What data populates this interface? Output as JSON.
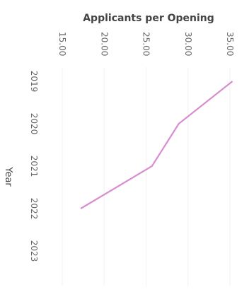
{
  "chart_data": {
    "type": "line",
    "orientation": "vertical-categories",
    "title": "Applicants per Opening",
    "y_axis_label": "Year",
    "categories": [
      "2019",
      "2020",
      "2021",
      "2022",
      "2023"
    ],
    "series": [
      {
        "name": "Applicants per Opening",
        "color": "#d98ccf",
        "values": [
          35.3,
          28.9,
          25.7,
          17.2,
          null
        ]
      }
    ],
    "xlim": [
      15,
      35
    ],
    "xticks": [
      {
        "value": 15,
        "label": "15.00"
      },
      {
        "value": 20,
        "label": "20.00"
      },
      {
        "value": 25,
        "label": "25.00"
      },
      {
        "value": 30,
        "label": "30.00"
      },
      {
        "value": 35,
        "label": "35.00"
      }
    ],
    "grid": true
  }
}
